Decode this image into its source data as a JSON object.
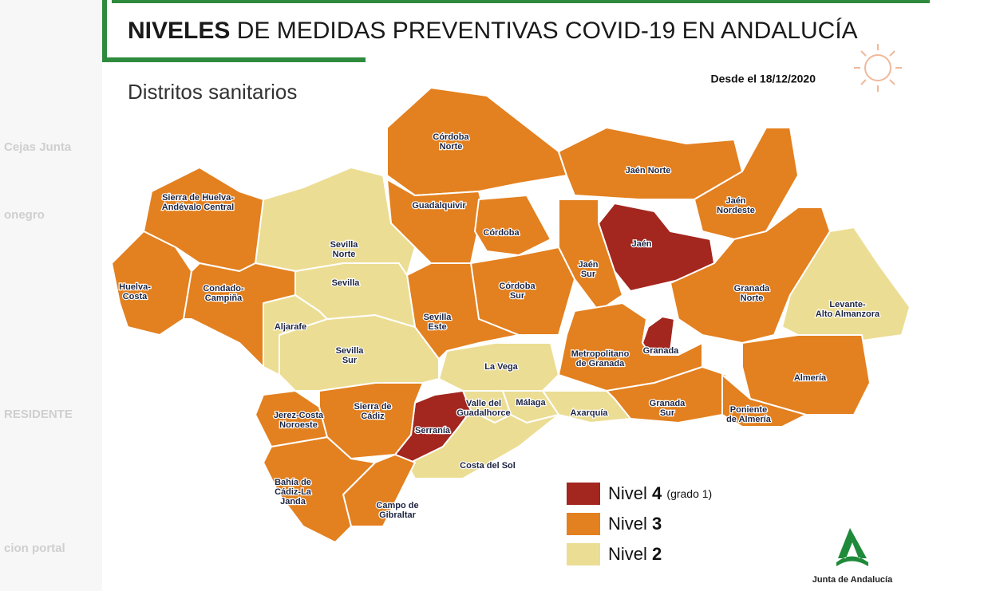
{
  "header": {
    "title_bold": "NIVELES",
    "title_rest": "DE MEDIDAS PREVENTIVAS COVID-19 EN ANDALUCÍA"
  },
  "subtitle": "Distritos sanitarios",
  "date": "Desde el 18/12/2020",
  "districts": [
    {
      "label": [
        "Córdoba",
        "Norte"
      ],
      "level": 3
    },
    {
      "label": [
        "Guadalquivir"
      ],
      "level": 3
    },
    {
      "label": [
        "Córdoba"
      ],
      "level": 3
    },
    {
      "label": [
        "Córdoba",
        "Sur"
      ],
      "level": 3
    },
    {
      "label": [
        "Jaén Norte"
      ],
      "level": 3
    },
    {
      "label": [
        "Jaén",
        "Nordeste"
      ],
      "level": 3
    },
    {
      "label": [
        "Jaén"
      ],
      "level": 4
    },
    {
      "label": [
        "Jaén",
        "Sur"
      ],
      "level": 3
    },
    {
      "label": [
        "Granada",
        "Norte"
      ],
      "level": 3
    },
    {
      "label": [
        "Levante-",
        "Alto Almanzora"
      ],
      "level": 2
    },
    {
      "label": [
        "Granada"
      ],
      "level": 4
    },
    {
      "label": [
        "Metropolitano",
        "de Granada"
      ],
      "level": 3
    },
    {
      "label": [
        "Almería"
      ],
      "level": 3
    },
    {
      "label": [
        "Granada",
        "Sur"
      ],
      "level": 3
    },
    {
      "label": [
        "Poniente",
        "de Almería"
      ],
      "level": 3
    },
    {
      "label": [
        "Axarquía"
      ],
      "level": 2
    },
    {
      "label": [
        "Málaga"
      ],
      "level": 2
    },
    {
      "label": [
        "Valle del",
        "Guadalhorce"
      ],
      "level": 2
    },
    {
      "label": [
        "La Vega"
      ],
      "level": 2
    },
    {
      "label": [
        "Serranía"
      ],
      "level": 4
    },
    {
      "label": [
        "Costa del Sol"
      ],
      "level": 2
    },
    {
      "label": [
        "Campo de",
        "Gibraltar"
      ],
      "level": 3
    },
    {
      "label": [
        "Bahía de",
        "Cádiz-La",
        "Janda"
      ],
      "level": 3
    },
    {
      "label": [
        "Jerez-Costa",
        "Noroeste"
      ],
      "level": 3
    },
    {
      "label": [
        "Sierra de",
        "Cádiz"
      ],
      "level": 3
    },
    {
      "label": [
        "Sevilla",
        "Sur"
      ],
      "level": 2
    },
    {
      "label": [
        "Aljarafe"
      ],
      "level": 2
    },
    {
      "label": [
        "Sevilla",
        "Este"
      ],
      "level": 3
    },
    {
      "label": [
        "Sevilla"
      ],
      "level": 2
    },
    {
      "label": [
        "Sevilla",
        "Norte"
      ],
      "level": 2
    },
    {
      "label": [
        "Sierra de Huelva-",
        "Andévalo Central"
      ],
      "level": 3
    },
    {
      "label": [
        "Huelva-",
        "Costa"
      ],
      "level": 3
    },
    {
      "label": [
        "Condado-",
        "Campiña"
      ],
      "level": 3
    }
  ],
  "legend": [
    {
      "text": "Nivel",
      "level": 4,
      "note": "(grado 1)",
      "color": "#a3261f"
    },
    {
      "text": "Nivel",
      "level": 3,
      "color": "#e3801f"
    },
    {
      "text": "Nivel",
      "level": 2,
      "color": "#ecdd94"
    }
  ],
  "logo": "Junta de Andalucía",
  "background_texts": [
    "Cejas Junta",
    "onegro",
    "RESIDENTE",
    "cion portal"
  ]
}
